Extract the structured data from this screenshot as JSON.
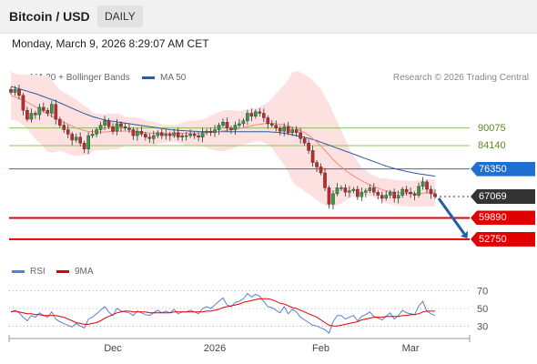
{
  "header": {
    "title": "Bitcoin / USD",
    "period": "DAILY"
  },
  "timestamp": "Monday, March 9, 2026 8:29:07 AM CET",
  "legend": {
    "ma20": {
      "label": "MA 20 + Bollinger Bands",
      "color": "#f28b82"
    },
    "ma50": {
      "label": "MA 50",
      "color": "#2e5c9a"
    }
  },
  "copyright": "Research © 2026 Trading Central",
  "rsi_legend": {
    "rsi": {
      "label": "RSI",
      "color": "#5b7fd6"
    },
    "ma": {
      "label": "9MA",
      "color": "#e00000"
    }
  },
  "chart_data": [
    {
      "type": "candlestick",
      "price_range": [
        46000,
        104000
      ],
      "x_ticks": [
        "Dec",
        "2026",
        "Feb",
        "Mar"
      ],
      "levels": [
        {
          "label": "90075",
          "value": 90075,
          "kind": "resistance",
          "color": "#8fbf5a"
        },
        {
          "label": "84140",
          "value": 84140,
          "kind": "resistance",
          "color": "#8fbf5a"
        },
        {
          "label": "76350",
          "value": 76350,
          "kind": "pivot",
          "color": "#1f6fd0"
        },
        {
          "label": "67069",
          "value": 67069,
          "kind": "last",
          "color": "#333333"
        },
        {
          "label": "59890",
          "value": 59890,
          "kind": "support",
          "color": "#e00000"
        },
        {
          "label": "52750",
          "value": 52750,
          "kind": "support",
          "color": "#e00000"
        }
      ],
      "closes": [
        102000,
        103000,
        101000,
        96000,
        93000,
        95000,
        94500,
        97000,
        96000,
        95000,
        98000,
        93000,
        91000,
        89500,
        88000,
        86000,
        87000,
        85000,
        83000,
        87500,
        88000,
        89500,
        91000,
        92500,
        90500,
        89000,
        91500,
        90500,
        90000,
        89500,
        87500,
        89000,
        88000,
        87000,
        86500,
        87500,
        88500,
        87500,
        88000,
        87500,
        88500,
        87000,
        87500,
        87500,
        88000,
        87500,
        87000,
        88500,
        89000,
        88500,
        89500,
        91000,
        92000,
        90000,
        89500,
        91000,
        91500,
        92500,
        95000,
        94000,
        95500,
        95000,
        93500,
        91500,
        91000,
        90000,
        89000,
        90500,
        88500,
        89500,
        88500,
        86500,
        85000,
        82500,
        78500,
        77000,
        75000,
        70000,
        64500,
        68000,
        70000,
        70000,
        68500,
        69000,
        69500,
        67000,
        68500,
        69000,
        70000,
        68500,
        67500,
        66500,
        67500,
        68500,
        66500,
        67500,
        69500,
        68500,
        68000,
        67500,
        70500,
        72000,
        69500,
        68000,
        67069
      ],
      "ma20": [
        101000,
        100500,
        100000,
        99500,
        98800,
        98000,
        97200,
        96400,
        95600,
        94800,
        94000,
        93300,
        92600,
        92000,
        91300,
        90700,
        90100,
        89600,
        89200,
        88900,
        88800,
        88700,
        88700,
        88700,
        88800,
        88900,
        89000,
        89000,
        89000,
        89000,
        88900,
        88700,
        88600,
        88500,
        88400,
        88300,
        88200,
        88200,
        88200,
        88200,
        88200,
        88300,
        88300,
        88300,
        88300,
        88400,
        88400,
        88400,
        88500,
        88600,
        88700,
        88900,
        89100,
        89300,
        89500,
        89700,
        89900,
        90200,
        90500,
        90800,
        91100,
        91300,
        91500,
        91600,
        91600,
        91500,
        91300,
        91100,
        90800,
        90400,
        89900,
        89300,
        88500,
        87600,
        86500,
        85300,
        84000,
        82500,
        81000,
        79500,
        78200,
        77000,
        75900,
        74900,
        74000,
        73200,
        72400,
        71700,
        71000,
        70400,
        69900,
        69400,
        69000,
        68700,
        68500,
        68300,
        68200,
        68100,
        68000,
        68000,
        68100,
        68200,
        68300,
        68300,
        68300
      ],
      "ma50": [
        104000,
        103600,
        103200,
        102800,
        102400,
        102000,
        101600,
        101100,
        100600,
        100100,
        99600,
        99100,
        98500,
        97900,
        97300,
        96700,
        96100,
        95500,
        94900,
        94400,
        93900,
        93500,
        93100,
        92800,
        92500,
        92300,
        92100,
        91900,
        91700,
        91500,
        91300,
        91100,
        90900,
        90700,
        90500,
        90300,
        90100,
        89900,
        89700,
        89500,
        89400,
        89300,
        89200,
        89100,
        89000,
        88950,
        88900,
        88850,
        88800,
        88800,
        88800,
        88800,
        88800,
        88800,
        88800,
        88800,
        88800,
        88800,
        88800,
        88800,
        88800,
        88800,
        88800,
        88800,
        88700,
        88600,
        88500,
        88300,
        88100,
        87800,
        87500,
        87200,
        86900,
        86600,
        86200,
        85800,
        85300,
        84800,
        84300,
        83800,
        83300,
        82800,
        82300,
        81800,
        81300,
        80800,
        80300,
        79800,
        79300,
        78800,
        78300,
        77800,
        77300,
        76900,
        76500,
        76100,
        75800,
        75500,
        75200,
        74900,
        74700,
        74500,
        74300,
        74100,
        73900
      ]
    },
    {
      "type": "line",
      "name": "RSI",
      "y_ticks": [
        70,
        50,
        30
      ],
      "y_range": [
        20,
        82
      ],
      "rsi": [
        46,
        48,
        45,
        40,
        36,
        42,
        40,
        45,
        42,
        40,
        46,
        38,
        35,
        33,
        31,
        29,
        33,
        30,
        28,
        38,
        40,
        44,
        48,
        52,
        46,
        42,
        50,
        47,
        46,
        45,
        42,
        47,
        45,
        43,
        42,
        45,
        48,
        45,
        47,
        45,
        49,
        44,
        46,
        46,
        48,
        46,
        44,
        50,
        52,
        50,
        54,
        58,
        62,
        54,
        52,
        57,
        58,
        61,
        67,
        63,
        66,
        64,
        58,
        52,
        51,
        48,
        45,
        52,
        44,
        49,
        46,
        40,
        37,
        34,
        31,
        30,
        28,
        26,
        22,
        35,
        42,
        42,
        38,
        40,
        42,
        36,
        41,
        43,
        46,
        41,
        39,
        37,
        41,
        45,
        38,
        42,
        48,
        45,
        44,
        43,
        53,
        58,
        47,
        44,
        42
      ],
      "ma9": [
        46,
        47,
        46,
        45,
        44,
        44,
        43,
        43,
        42,
        42,
        42,
        42,
        41,
        40,
        38,
        36,
        34,
        33,
        32,
        32,
        33,
        34,
        36,
        39,
        41,
        43,
        45,
        46,
        47,
        47,
        46,
        46,
        46,
        46,
        45,
        45,
        45,
        45,
        45,
        45,
        46,
        46,
        46,
        46,
        46,
        46,
        46,
        46,
        47,
        47,
        48,
        49,
        51,
        52,
        53,
        54,
        55,
        57,
        58,
        59,
        60,
        61,
        61,
        61,
        60,
        58,
        56,
        55,
        53,
        51,
        50,
        48,
        46,
        44,
        42,
        40,
        37,
        34,
        31,
        30,
        30,
        31,
        32,
        33,
        34,
        35,
        37,
        38,
        39,
        40,
        40,
        40,
        41,
        41,
        41,
        41,
        42,
        42,
        43,
        43,
        44,
        46,
        47,
        47,
        47
      ]
    }
  ]
}
